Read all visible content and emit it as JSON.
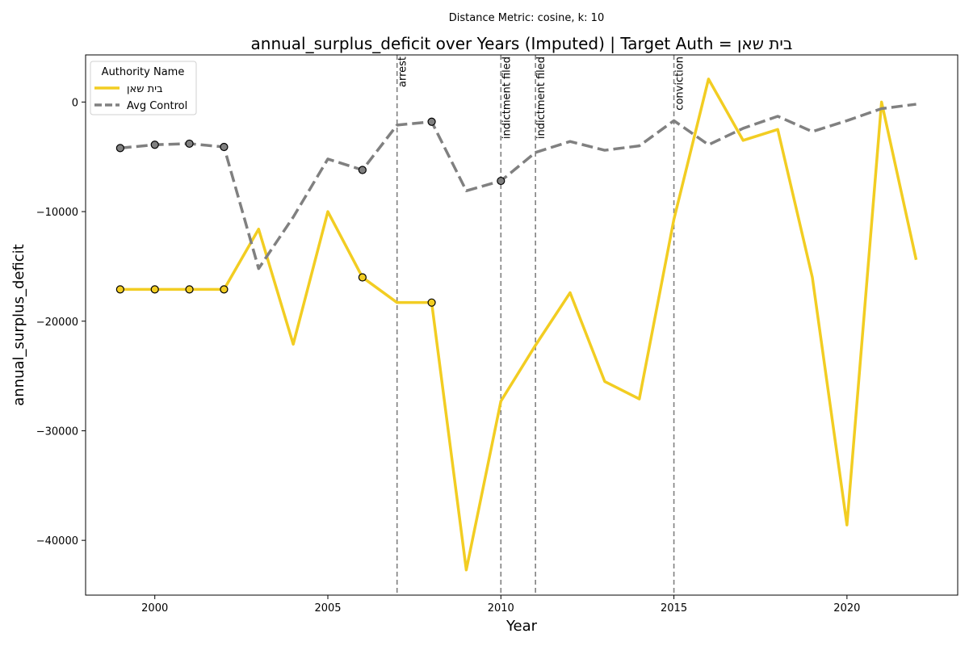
{
  "chart_data": {
    "type": "line",
    "suptitle": "Distance Metric: cosine, k: 10",
    "title": "annual_surplus_deficit over Years (Imputed) | Target Auth = בית שאן",
    "xlabel": "Year",
    "ylabel": "annual_surplus_deficit",
    "xlim": [
      1998,
      2023.2
    ],
    "ylim": [
      -45000,
      4300
    ],
    "xticks": [
      2000,
      2005,
      2010,
      2015,
      2020
    ],
    "yticks": [
      0,
      -10000,
      -20000,
      -30000,
      -40000
    ],
    "ytick_labels": [
      "0",
      "−10000",
      "−20000",
      "−30000",
      "−40000"
    ],
    "grid": false,
    "legend": {
      "title": "Authority Name",
      "position": "top-left",
      "entries": [
        "בית שאן",
        "Avg Control"
      ]
    },
    "series": [
      {
        "name": "בית שאן",
        "color": "#F2CD22",
        "style": "solid",
        "x": [
          1999,
          2000,
          2001,
          2002,
          2003,
          2004,
          2005,
          2006,
          2007,
          2008,
          2009,
          2010,
          2011,
          2012,
          2013,
          2014,
          2015,
          2016,
          2017,
          2018,
          2019,
          2020,
          2021,
          2022
        ],
        "y": [
          -17100,
          -17100,
          -17100,
          -17100,
          -11600,
          -22100,
          -10000,
          -16000,
          -18300,
          -18300,
          -42700,
          -27300,
          -22200,
          -17400,
          -25500,
          -27100,
          -10700,
          2100,
          -3500,
          -2500,
          -16000,
          -38600,
          0,
          -14400
        ],
        "imputed_x": [
          1999,
          2000,
          2001,
          2002,
          2006,
          2008
        ]
      },
      {
        "name": "Avg Control",
        "color": "#808080",
        "style": "dashed",
        "x": [
          1999,
          2000,
          2001,
          2002,
          2003,
          2004,
          2005,
          2006,
          2007,
          2008,
          2009,
          2010,
          2011,
          2012,
          2013,
          2014,
          2015,
          2016,
          2017,
          2018,
          2019,
          2020,
          2021,
          2022
        ],
        "y": [
          -4200,
          -3900,
          -3800,
          -4100,
          -15200,
          -10500,
          -5200,
          -6200,
          -2100,
          -1800,
          -8100,
          -7200,
          -4600,
          -3600,
          -4400,
          -4000,
          -1700,
          -3900,
          -2400,
          -1300,
          -2700,
          -1700,
          -600,
          -200
        ],
        "imputed_x": [
          1999,
          2000,
          2001,
          2002,
          2006,
          2008,
          2010
        ]
      }
    ],
    "events": [
      {
        "x": 2007,
        "label": "arrest"
      },
      {
        "x": 2010,
        "label": "indictment filed"
      },
      {
        "x": 2011,
        "label": "indictment filed"
      },
      {
        "x": 2015,
        "label": "conviction"
      }
    ]
  }
}
